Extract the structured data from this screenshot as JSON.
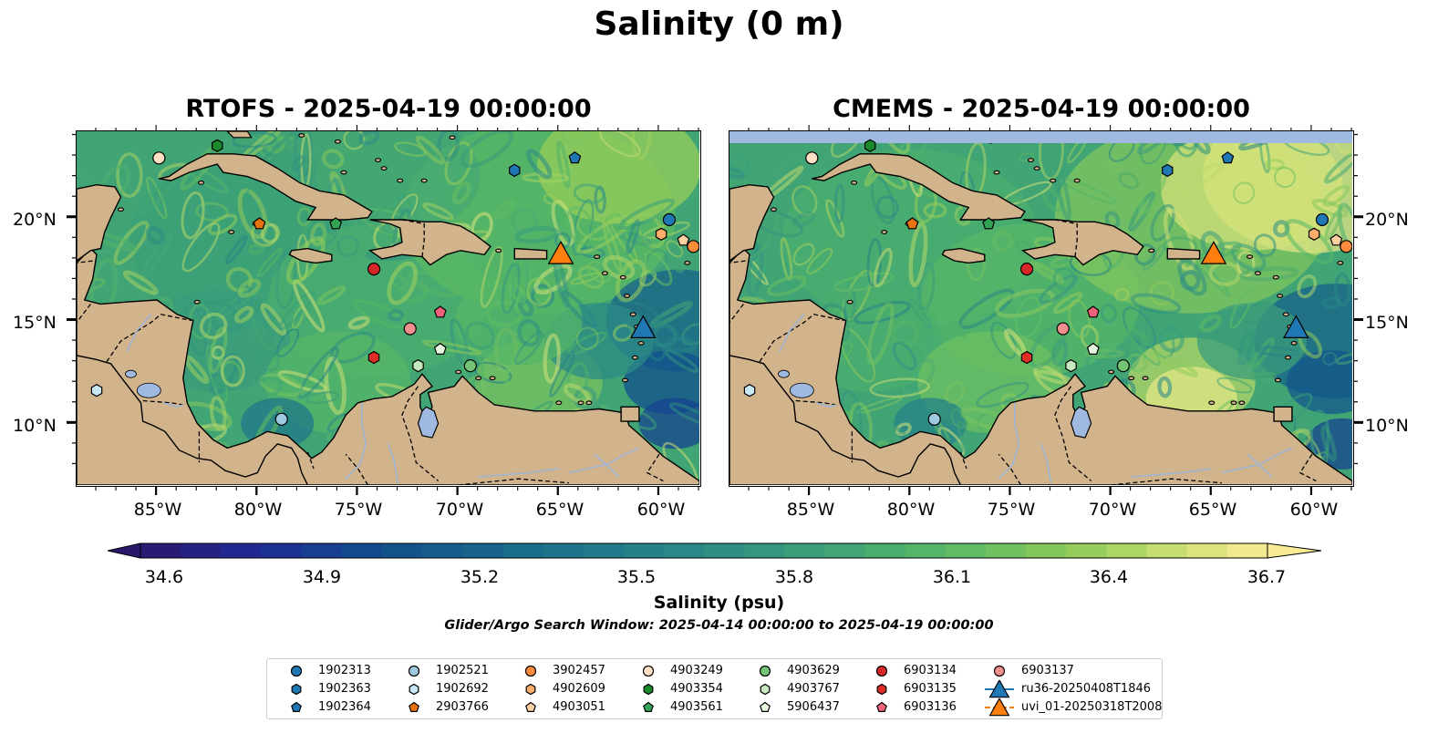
{
  "figure": {
    "suptitle": "Salinity (0 m)",
    "panels": [
      {
        "title": "RTOFS - 2025-04-19 00:00:00"
      },
      {
        "title": "CMEMS - 2025-04-19 00:00:00"
      }
    ],
    "lat_ticks": [
      "20°N",
      "15°N",
      "10°N"
    ],
    "lon_ticks": [
      "85°W",
      "80°W",
      "75°W",
      "70°W",
      "65°W",
      "60°W"
    ],
    "colorbar": {
      "label": "Salinity (psu)",
      "ticks": [
        "34.6",
        "34.9",
        "35.2",
        "35.5",
        "35.8",
        "36.1",
        "36.4",
        "36.7"
      ],
      "colormap": "haline",
      "range": [
        34.6,
        36.7
      ]
    },
    "caption": "Glider/Argo Search Window: 2025-04-14 00:00:00 to 2025-04-19 00:00:00"
  },
  "legend": [
    {
      "label": "1902313",
      "color": "#1f77b4",
      "marker": "circle"
    },
    {
      "label": "1902363",
      "color": "#1f77b4",
      "marker": "hexagon"
    },
    {
      "label": "1902364",
      "color": "#1f77b4",
      "marker": "pentagon"
    },
    {
      "label": "1902521",
      "color": "#9ecae1",
      "marker": "circle"
    },
    {
      "label": "1902692",
      "color": "#c6e9f5",
      "marker": "hexagon"
    },
    {
      "label": "2903766",
      "color": "#e6730f",
      "marker": "pentagon"
    },
    {
      "label": "3902457",
      "color": "#fd8d3c",
      "marker": "circle"
    },
    {
      "label": "4902609",
      "color": "#fdae6b",
      "marker": "hexagon"
    },
    {
      "label": "4903051",
      "color": "#fdd0a2",
      "marker": "pentagon"
    },
    {
      "label": "4903249",
      "color": "#fde0c5",
      "marker": "circle"
    },
    {
      "label": "4903354",
      "color": "#1b8a2c",
      "marker": "hexagon"
    },
    {
      "label": "4903561",
      "color": "#31a354",
      "marker": "pentagon"
    },
    {
      "label": "4903629",
      "color": "#74c476",
      "marker": "circle"
    },
    {
      "label": "4903767",
      "color": "#c7e9c0",
      "marker": "hexagon"
    },
    {
      "label": "5906437",
      "color": "#e5f5e0",
      "marker": "pentagon"
    },
    {
      "label": "6903134",
      "color": "#d62728",
      "marker": "circle"
    },
    {
      "label": "6903135",
      "color": "#de2d26",
      "marker": "hexagon"
    },
    {
      "label": "6903136",
      "color": "#f0627a",
      "marker": "pentagon"
    },
    {
      "label": "6903137",
      "color": "#f28e8e",
      "marker": "circle"
    },
    {
      "label": "ru36-20250408T1846",
      "color": "#1f77b4",
      "marker": "triangle"
    },
    {
      "label": "uvi_01-20250318T2008",
      "color": "#ff7f0e",
      "marker": "triangle"
    }
  ],
  "map_extent": {
    "lon": [
      -89,
      -58
    ],
    "lat": [
      7,
      24.2
    ]
  },
  "observations": [
    {
      "id": "1902313",
      "lon": -59.5,
      "lat": 19.9
    },
    {
      "id": "1902363",
      "lon": -67.2,
      "lat": 22.3
    },
    {
      "id": "1902364",
      "lon": -64.2,
      "lat": 22.9
    },
    {
      "id": "1902521",
      "lon": -78.8,
      "lat": 10.2
    },
    {
      "id": "1902692",
      "lon": -88.0,
      "lat": 11.6
    },
    {
      "id": "2903766",
      "lon": -79.9,
      "lat": 19.7
    },
    {
      "id": "3902457",
      "lon": -58.3,
      "lat": 18.6
    },
    {
      "id": "4902609",
      "lon": -59.9,
      "lat": 19.2
    },
    {
      "id": "4903051",
      "lon": -58.8,
      "lat": 18.9
    },
    {
      "id": "4903249",
      "lon": -84.9,
      "lat": 22.9
    },
    {
      "id": "4903354",
      "lon": -82.0,
      "lat": 23.5
    },
    {
      "id": "4903561",
      "lon": -76.1,
      "lat": 19.7
    },
    {
      "id": "4903629",
      "lon": -69.4,
      "lat": 12.8
    },
    {
      "id": "4903767",
      "lon": -72.0,
      "lat": 12.8
    },
    {
      "id": "5906437",
      "lon": -70.9,
      "lat": 13.6
    },
    {
      "id": "6903134",
      "lon": -74.2,
      "lat": 17.5
    },
    {
      "id": "6903135",
      "lon": -74.2,
      "lat": 13.2
    },
    {
      "id": "6903136",
      "lon": -70.9,
      "lat": 15.4
    },
    {
      "id": "6903137",
      "lon": -72.4,
      "lat": 14.6
    },
    {
      "id": "ru36-20250408T1846",
      "lon": -60.8,
      "lat": 14.6
    },
    {
      "id": "uvi_01-20250318T2008",
      "lon": -64.9,
      "lat": 18.2
    }
  ]
}
